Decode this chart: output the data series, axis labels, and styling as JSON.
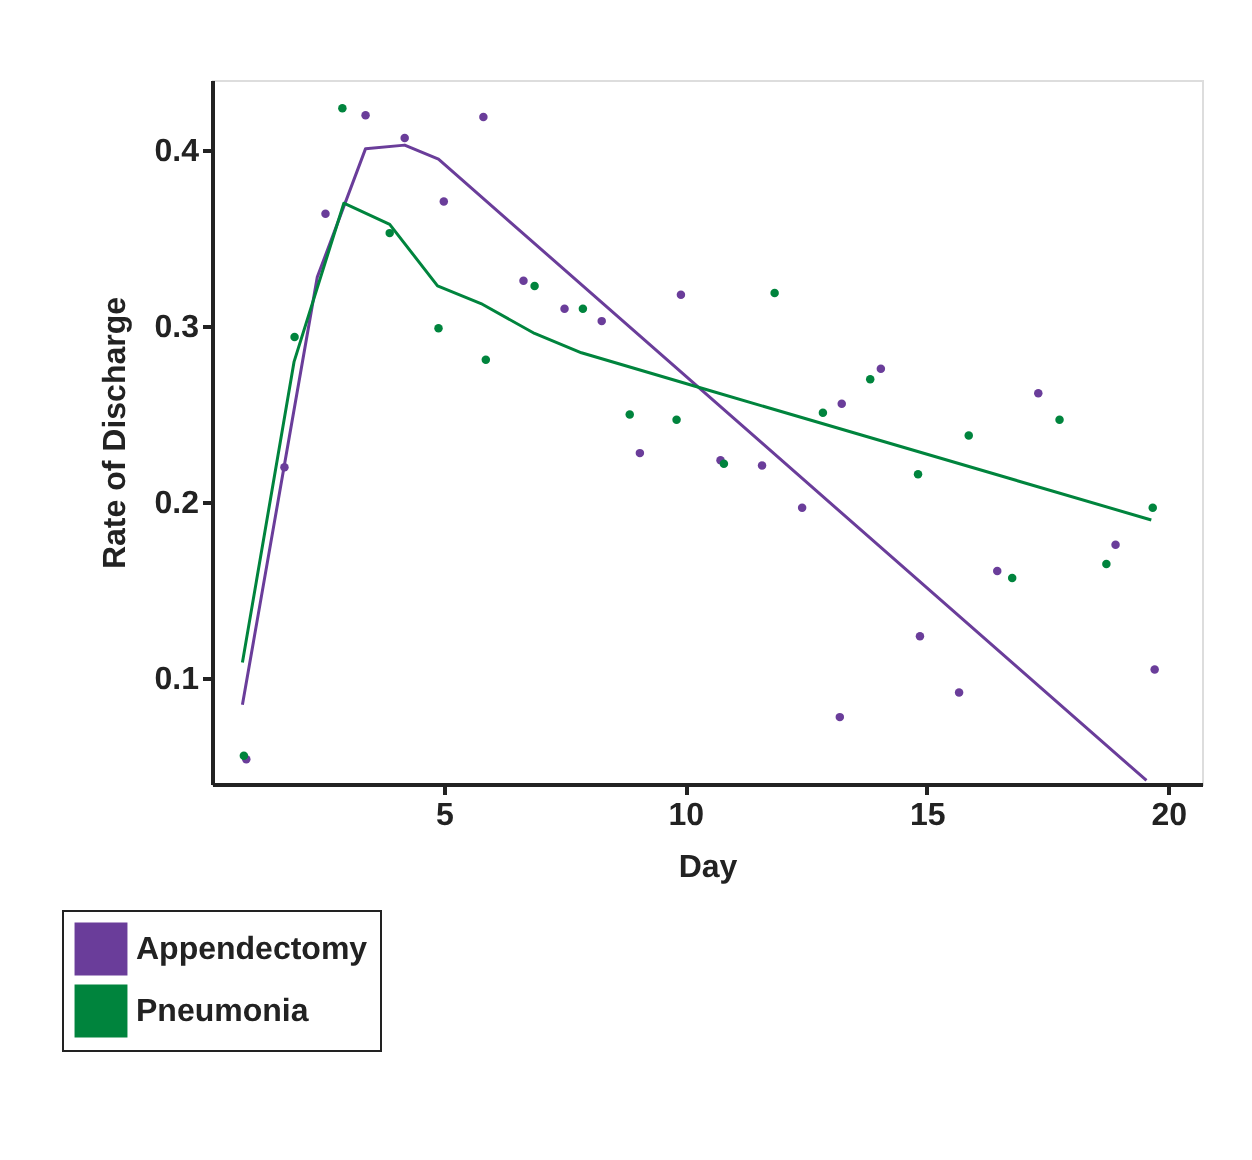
{
  "chart_data": {
    "type": "scatter",
    "xlabel": "Day",
    "ylabel": "Rate of Discharge",
    "xlim": [
      0.2,
      20.7
    ],
    "ylim": [
      0.04,
      0.44
    ],
    "xticks": [
      5,
      10,
      15,
      20
    ],
    "yticks": [
      0.1,
      0.2,
      0.3,
      0.4
    ],
    "grid": false,
    "legend": "bottom left",
    "marker": "circle",
    "series": [
      {
        "name": "Appendectomy",
        "color": "#6a3d9a",
        "x": [
          0.91,
          1.7,
          2.55,
          3.38,
          4.19,
          5.0,
          5.82,
          6.65,
          7.5,
          8.27,
          9.06,
          9.91,
          10.73,
          11.59,
          12.42,
          13.2,
          13.24,
          14.05,
          14.86,
          15.67,
          16.46,
          17.31,
          18.91,
          19.72
        ],
        "values": [
          0.054,
          0.22,
          0.364,
          0.42,
          0.407,
          0.371,
          0.419,
          0.326,
          0.31,
          0.303,
          0.228,
          0.318,
          0.224,
          0.221,
          0.197,
          0.078,
          0.256,
          0.276,
          0.124,
          0.092,
          0.161,
          0.262,
          0.176,
          0.105
        ]
      },
      {
        "name": "Pneumonia",
        "color": "#00843d",
        "x": [
          0.86,
          1.91,
          2.9,
          3.88,
          4.89,
          5.87,
          6.88,
          7.88,
          8.85,
          9.82,
          10.8,
          11.85,
          12.85,
          13.83,
          14.82,
          15.87,
          16.77,
          17.75,
          18.72,
          19.68
        ],
        "values": [
          0.056,
          0.294,
          0.424,
          0.353,
          0.299,
          0.281,
          0.323,
          0.31,
          0.25,
          0.247,
          0.222,
          0.319,
          0.251,
          0.27,
          0.216,
          0.238,
          0.157,
          0.247,
          0.165,
          0.197
        ]
      },
      {
        "type": "line",
        "color": "#6a3d9a",
        "marker": "none",
        "x": [
          0.83,
          2.38,
          3.38,
          4.19,
          4.89,
          19.55
        ],
        "values": [
          0.085,
          0.328,
          0.401,
          0.403,
          0.395,
          0.042
        ]
      },
      {
        "type": "line",
        "color": "#00843d",
        "marker": "none",
        "x": [
          0.83,
          1.9,
          2.93,
          3.88,
          4.87,
          5.77,
          6.88,
          7.85,
          10.45,
          19.65
        ],
        "values": [
          0.109,
          0.28,
          0.37,
          0.358,
          0.323,
          0.313,
          0.296,
          0.285,
          0.264,
          0.19
        ]
      }
    ]
  }
}
